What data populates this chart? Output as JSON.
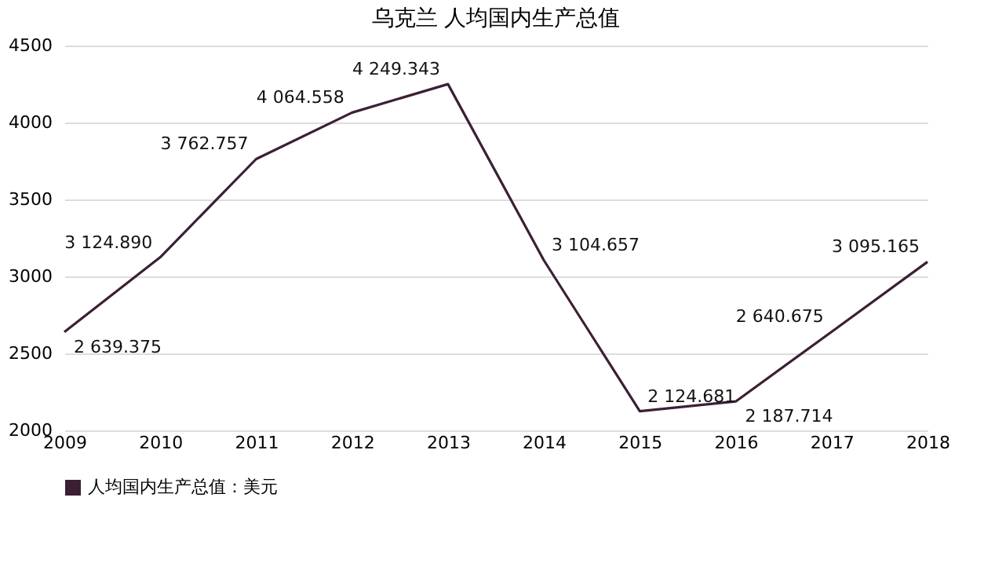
{
  "chart_data": {
    "type": "line",
    "title": "乌克兰 人均国内生产总值",
    "categories": [
      "2009",
      "2010",
      "2011",
      "2012",
      "2013",
      "2014",
      "2015",
      "2016",
      "2017",
      "2018"
    ],
    "series": [
      {
        "name": "人均国内生产总值：美元",
        "color": "#3b2035",
        "values": [
          2639.375,
          3124.89,
          3762.757,
          4064.558,
          4249.343,
          3104.657,
          2124.681,
          2187.714,
          2640.675,
          3095.165
        ],
        "value_labels": [
          "2 639.375",
          "3 124.890",
          "3 762.757",
          "4 064.558",
          "4 249.343",
          "3 104.657",
          "2 124.681",
          "2 187.714",
          "2 640.675",
          "3 095.165"
        ]
      }
    ],
    "ylim": [
      2000,
      4500
    ],
    "yticks": [
      {
        "value": 2000,
        "label": "2000"
      },
      {
        "value": 2500,
        "label": "2500"
      },
      {
        "value": 3000,
        "label": "3000"
      },
      {
        "value": 3500,
        "label": "3500"
      },
      {
        "value": 4000,
        "label": "4000"
      },
      {
        "value": 4500,
        "label": "4500"
      }
    ],
    "grid": "y",
    "legend": "bottom",
    "marker": "none",
    "line_style": "solid"
  }
}
